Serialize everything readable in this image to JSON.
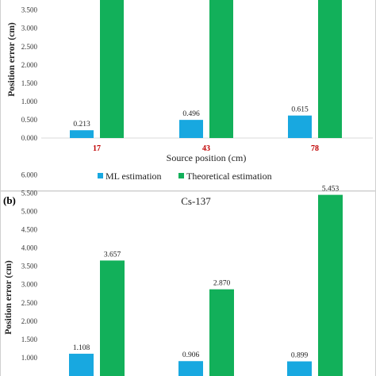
{
  "chart_data": [
    {
      "type": "bar",
      "title": "",
      "xlabel": "Source position (cm)",
      "ylabel": "Position error (cm)",
      "categories": [
        "17",
        "43",
        "78"
      ],
      "category_color": "#c00000",
      "series": [
        {
          "name": "ML estimation",
          "values": [
            0.213,
            0.496,
            0.615
          ],
          "color": "#18a8e0"
        },
        {
          "name": "Theoretical estimation",
          "values": [
            4.1,
            4.1,
            4.1
          ],
          "color": "#12b05a"
        }
      ],
      "value_labels": [
        [
          "0.213",
          "0.496",
          "0.615"
        ],
        [
          "",
          "",
          ""
        ]
      ],
      "yticks": [
        "0.000",
        "0.500",
        "1.000",
        "1.500",
        "2.000",
        "2.500",
        "3.000",
        "3.500"
      ],
      "ylim": [
        0,
        3.9
      ],
      "legend": "bottom",
      "grid": false
    },
    {
      "type": "bar",
      "panel_label": "(b)",
      "title": "Cs-137",
      "xlabel": "",
      "ylabel": "Position error (cm)",
      "categories": [
        "",
        "",
        ""
      ],
      "series": [
        {
          "name": "ML estimation",
          "values": [
            1.108,
            0.906,
            0.899
          ],
          "color": "#18a8e0"
        },
        {
          "name": "Theoretical estimation",
          "values": [
            3.657,
            2.87,
            5.453
          ],
          "color": "#12b05a"
        }
      ],
      "value_labels": [
        [
          "1.108",
          "0.906",
          "0.899"
        ],
        [
          "3.657",
          "2.870",
          "5.453"
        ]
      ],
      "yticks": [
        "1.000",
        "1.500",
        "2.000",
        "2.500",
        "3.000",
        "3.500",
        "4.000",
        "4.500",
        "5.000",
        "5.500",
        "6.000"
      ],
      "ylim": [
        0,
        6
      ],
      "legend": "none",
      "grid": false
    }
  ]
}
